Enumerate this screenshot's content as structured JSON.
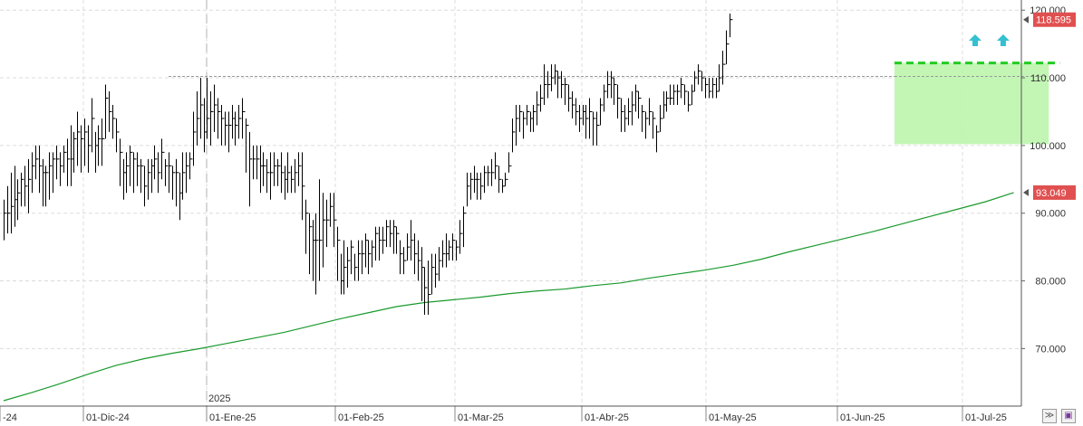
{
  "chart_data": {
    "type": "ohlc",
    "title": "",
    "x_labels": [
      "-24",
      "01-Dic-24",
      "01-Ene-25",
      "01-Feb-25",
      "01-Mar-25",
      "01-Abr-25",
      "01-May-25",
      "01-Jun-25",
      "01-Jul-25"
    ],
    "year_marker": "2025",
    "y_ticks": [
      "70.000",
      "80.000",
      "90.000",
      "100.000",
      "110.000",
      "120.000"
    ],
    "ylim": [
      61.5,
      121.5
    ],
    "last_price": "118.595",
    "ma_value": "93.049",
    "colors": {
      "price": "#000000",
      "ma": "#1a9a2e",
      "box_fill": "#b8f5a8",
      "breakout": "#22cc22",
      "arrow": "#33c0d0",
      "badge": "#e05050"
    },
    "bars": [
      [
        90,
        86,
        92
      ],
      [
        90,
        87,
        94
      ],
      [
        91,
        87,
        96
      ],
      [
        92,
        88,
        97
      ],
      [
        93,
        89,
        95
      ],
      [
        95,
        91,
        96
      ],
      [
        94,
        91,
        97
      ],
      [
        95,
        90,
        98
      ],
      [
        97,
        93,
        99
      ],
      [
        98,
        95,
        100
      ],
      [
        97,
        93,
        100
      ],
      [
        96,
        91,
        98
      ],
      [
        96,
        91,
        97
      ],
      [
        97,
        92,
        99
      ],
      [
        98,
        93,
        99
      ],
      [
        98,
        95,
        100
      ],
      [
        97,
        94,
        99
      ],
      [
        99,
        96,
        100
      ],
      [
        98,
        94,
        101
      ],
      [
        98,
        94,
        103
      ],
      [
        101,
        96,
        102
      ],
      [
        102,
        97,
        105
      ],
      [
        101,
        96,
        103
      ],
      [
        102,
        97,
        104
      ],
      [
        100,
        96,
        103
      ],
      [
        104,
        99,
        107
      ],
      [
        100,
        96,
        102
      ],
      [
        101,
        97,
        103
      ],
      [
        101,
        97,
        104
      ],
      [
        107,
        101,
        109
      ],
      [
        105,
        102,
        108
      ],
      [
        104,
        101,
        106
      ],
      [
        102,
        99,
        104
      ],
      [
        99,
        94,
        101
      ],
      [
        96,
        92,
        98
      ],
      [
        97,
        93,
        99
      ],
      [
        99,
        94,
        100
      ],
      [
        98,
        93,
        99
      ],
      [
        97,
        94,
        99
      ],
      [
        97,
        93,
        98
      ],
      [
        94,
        91,
        97
      ],
      [
        96,
        92,
        98
      ],
      [
        97,
        93,
        98
      ],
      [
        98,
        95,
        100
      ],
      [
        96,
        93,
        99
      ],
      [
        99,
        95,
        101
      ],
      [
        97,
        94,
        98
      ],
      [
        97,
        93,
        99
      ],
      [
        96,
        92,
        97
      ],
      [
        96,
        91,
        98
      ],
      [
        93,
        89,
        96
      ],
      [
        96,
        92,
        99
      ],
      [
        97,
        93,
        99
      ],
      [
        98,
        95,
        99
      ],
      [
        102,
        97,
        105
      ],
      [
        104,
        100,
        108
      ],
      [
        106,
        101,
        110
      ],
      [
        102,
        99,
        107
      ],
      [
        104,
        101,
        110
      ],
      [
        105,
        100,
        108
      ],
      [
        106,
        102,
        109
      ],
      [
        105,
        101,
        107
      ],
      [
        104,
        100,
        106
      ],
      [
        103,
        100,
        105
      ],
      [
        103,
        99,
        105
      ],
      [
        104,
        101,
        106
      ],
      [
        103,
        100,
        105
      ],
      [
        104,
        101,
        106
      ],
      [
        105,
        101,
        107
      ],
      [
        103,
        96,
        104
      ],
      [
        98,
        91,
        102
      ],
      [
        98,
        95,
        100
      ],
      [
        98,
        95,
        100
      ],
      [
        97,
        93,
        100
      ],
      [
        97,
        94,
        99
      ],
      [
        96,
        93,
        98
      ],
      [
        96,
        92,
        99
      ],
      [
        97,
        94,
        99
      ],
      [
        97,
        94,
        98
      ],
      [
        96,
        93,
        99
      ],
      [
        95,
        92,
        97
      ],
      [
        96,
        93,
        99
      ],
      [
        95,
        93,
        97
      ],
      [
        96,
        93,
        98
      ],
      [
        97,
        94,
        99
      ],
      [
        94,
        89,
        99
      ],
      [
        90,
        84,
        92
      ],
      [
        88,
        81,
        90
      ],
      [
        86,
        80,
        89
      ],
      [
        86,
        78,
        90
      ],
      [
        86,
        80,
        95
      ],
      [
        89,
        82,
        93
      ],
      [
        89,
        85,
        92
      ],
      [
        91,
        88,
        93
      ],
      [
        89,
        85,
        93
      ],
      [
        86,
        80,
        88
      ],
      [
        80,
        78,
        84
      ],
      [
        82,
        78,
        86
      ],
      [
        83,
        79,
        85
      ],
      [
        85,
        81,
        86
      ],
      [
        82,
        80,
        84
      ],
      [
        84,
        80,
        86
      ],
      [
        84,
        81,
        86
      ],
      [
        86,
        82,
        87
      ],
      [
        84,
        81,
        86
      ],
      [
        85,
        82,
        86
      ],
      [
        87,
        83,
        88
      ],
      [
        86,
        83,
        88
      ],
      [
        86,
        84,
        88
      ],
      [
        88,
        85,
        89
      ],
      [
        87,
        85,
        89
      ],
      [
        88,
        84,
        89
      ],
      [
        87,
        84,
        88
      ],
      [
        84,
        81,
        86
      ],
      [
        83,
        81,
        85
      ],
      [
        85,
        83,
        87
      ],
      [
        86,
        83,
        89
      ],
      [
        84,
        81,
        87
      ],
      [
        83,
        80,
        86
      ],
      [
        82,
        77,
        85
      ],
      [
        79,
        75,
        82
      ],
      [
        78,
        75,
        83
      ],
      [
        82,
        78,
        84
      ],
      [
        81,
        79,
        84
      ],
      [
        83,
        80,
        85
      ],
      [
        84,
        82,
        86
      ],
      [
        84,
        82,
        87
      ],
      [
        85,
        83,
        86
      ],
      [
        86,
        83,
        87
      ],
      [
        85,
        83,
        86
      ],
      [
        87,
        84,
        89
      ],
      [
        90,
        85,
        91
      ],
      [
        94,
        91,
        96
      ],
      [
        95,
        92,
        96
      ],
      [
        95,
        93,
        97
      ],
      [
        95,
        92,
        96
      ],
      [
        94,
        92,
        96
      ],
      [
        96,
        93,
        97
      ],
      [
        96,
        94,
        97
      ],
      [
        96,
        94,
        98
      ],
      [
        97,
        95,
        99
      ],
      [
        95,
        93,
        97
      ],
      [
        94,
        93,
        95
      ],
      [
        95,
        94,
        96
      ],
      [
        97,
        96,
        99
      ],
      [
        102,
        99,
        104
      ],
      [
        104,
        100,
        106
      ],
      [
        105,
        102,
        106
      ],
      [
        104,
        101,
        105
      ],
      [
        105,
        103,
        106
      ],
      [
        104,
        102,
        105
      ],
      [
        105,
        102,
        106
      ],
      [
        106,
        103,
        108
      ],
      [
        107,
        105,
        109
      ],
      [
        109,
        106,
        112
      ],
      [
        109,
        107,
        111
      ],
      [
        110,
        108,
        112
      ],
      [
        111,
        109,
        112
      ],
      [
        110,
        107,
        111
      ],
      [
        109,
        107,
        111
      ],
      [
        109,
        106,
        110
      ],
      [
        107,
        105,
        109
      ],
      [
        106,
        104,
        108
      ],
      [
        105,
        103,
        107
      ],
      [
        104,
        102,
        106
      ],
      [
        105,
        103,
        106
      ],
      [
        104,
        101,
        106
      ],
      [
        105,
        101,
        107
      ],
      [
        104,
        100,
        105
      ],
      [
        103,
        100,
        105
      ],
      [
        106,
        103,
        107
      ],
      [
        108,
        105,
        109
      ],
      [
        109,
        107,
        111
      ],
      [
        110,
        107,
        111
      ],
      [
        109,
        106,
        110
      ],
      [
        107,
        104,
        109
      ],
      [
        105,
        102,
        107
      ],
      [
        104,
        102,
        106
      ],
      [
        105,
        103,
        107
      ],
      [
        106,
        103,
        108
      ],
      [
        108,
        105,
        109
      ],
      [
        107,
        104,
        108
      ],
      [
        105,
        102,
        106
      ],
      [
        104,
        101,
        105
      ],
      [
        105,
        103,
        107
      ],
      [
        104,
        101,
        105
      ],
      [
        102,
        99,
        103
      ],
      [
        104,
        102,
        106
      ],
      [
        106,
        104,
        108
      ],
      [
        107,
        105,
        108
      ],
      [
        107,
        106,
        109
      ],
      [
        108,
        106,
        109
      ],
      [
        108,
        106,
        109
      ],
      [
        109,
        107,
        110
      ],
      [
        108,
        106,
        109
      ],
      [
        106,
        105,
        108
      ],
      [
        108,
        106,
        109
      ],
      [
        110,
        108,
        111
      ],
      [
        111,
        109,
        112
      ],
      [
        110,
        108,
        111
      ],
      [
        109,
        107,
        110
      ],
      [
        108,
        107,
        110
      ],
      [
        109,
        107,
        110
      ],
      [
        108,
        107,
        110
      ],
      [
        110,
        108,
        112
      ],
      [
        112,
        109,
        114
      ],
      [
        115,
        112,
        117
      ],
      [
        118.6,
        116,
        119.5
      ]
    ],
    "moving_average": [
      [
        0,
        62.3
      ],
      [
        8,
        63.5
      ],
      [
        16,
        64.8
      ],
      [
        24,
        66.2
      ],
      [
        32,
        67.5
      ],
      [
        40,
        68.5
      ],
      [
        48,
        69.3
      ],
      [
        56,
        70.0
      ],
      [
        64,
        70.8
      ],
      [
        72,
        71.6
      ],
      [
        80,
        72.4
      ],
      [
        88,
        73.4
      ],
      [
        96,
        74.4
      ],
      [
        104,
        75.3
      ],
      [
        112,
        76.2
      ],
      [
        120,
        76.8
      ],
      [
        128,
        77.2
      ],
      [
        136,
        77.6
      ],
      [
        144,
        78.1
      ],
      [
        152,
        78.5
      ],
      [
        160,
        78.8
      ],
      [
        168,
        79.3
      ],
      [
        176,
        79.7
      ],
      [
        184,
        80.4
      ],
      [
        192,
        81.0
      ],
      [
        200,
        81.6
      ],
      [
        208,
        82.3
      ],
      [
        216,
        83.2
      ],
      [
        224,
        84.3
      ],
      [
        232,
        85.3
      ],
      [
        240,
        86.3
      ],
      [
        248,
        87.3
      ],
      [
        256,
        88.4
      ],
      [
        264,
        89.5
      ],
      [
        272,
        90.6
      ],
      [
        280,
        91.7
      ],
      [
        288,
        93.05
      ]
    ],
    "resistance_level": 110.2,
    "box": {
      "x_start": 254,
      "x_end": 298,
      "y_low": 100.2,
      "y_high": 112.2
    },
    "breakout_level": 112.2,
    "arrows_at": [
      277,
      285
    ]
  },
  "ui": {
    "collapse_icon": "collapse-icon",
    "save_icon": "save-icon"
  }
}
